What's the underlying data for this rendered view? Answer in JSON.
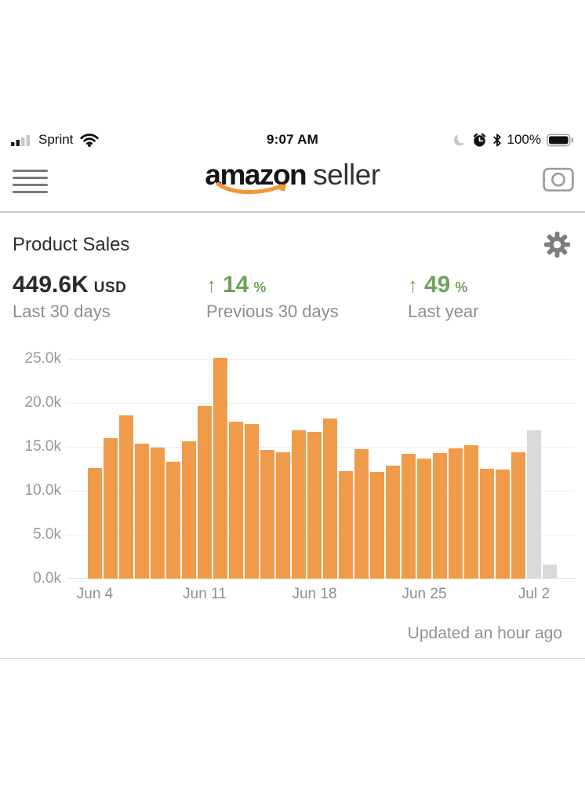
{
  "status_bar": {
    "carrier": "Sprint",
    "time": "9:07 AM",
    "battery_percent": "100%"
  },
  "header": {
    "logo_primary": "amazon",
    "logo_secondary": "seller"
  },
  "product_sales": {
    "title": "Product Sales",
    "total_value": "449.6K",
    "total_unit": "USD",
    "total_caption": "Last 30 days",
    "comparisons": [
      {
        "arrow": "↑",
        "value": "14",
        "unit": "%",
        "caption": "Previous 30 days"
      },
      {
        "arrow": "↑",
        "value": "49",
        "unit": "%",
        "caption": "Last year"
      }
    ],
    "updated_text": "Updated an hour ago"
  },
  "colors": {
    "bar_orange": "#ef9b4a",
    "bar_partial_gray": "#d9d9d9",
    "green": "#6da45c",
    "smile_orange": "#f0973a"
  },
  "chart_data": {
    "type": "bar",
    "title": "Product Sales, last 30 days (USD)",
    "categories": [
      "Jun 4",
      "Jun 5",
      "Jun 6",
      "Jun 7",
      "Jun 8",
      "Jun 9",
      "Jun 10",
      "Jun 11",
      "Jun 12",
      "Jun 13",
      "Jun 14",
      "Jun 15",
      "Jun 16",
      "Jun 17",
      "Jun 18",
      "Jun 19",
      "Jun 20",
      "Jun 21",
      "Jun 22",
      "Jun 23",
      "Jun 24",
      "Jun 25",
      "Jun 26",
      "Jun 27",
      "Jun 28",
      "Jun 29",
      "Jun 30",
      "Jul 1",
      "Jul 2",
      "Jul 3"
    ],
    "values": [
      12600,
      16000,
      18600,
      15400,
      14900,
      13300,
      15600,
      19600,
      25100,
      17900,
      17600,
      14600,
      14400,
      16900,
      16700,
      18200,
      12200,
      14700,
      12100,
      12900,
      14200,
      13700,
      14300,
      14800,
      15200,
      12500,
      12400,
      14400,
      16900,
      1600
    ],
    "partial_indices": [
      28,
      29
    ],
    "x_ticks": [
      {
        "label": "Jun 4",
        "index": 0
      },
      {
        "label": "Jun 11",
        "index": 7
      },
      {
        "label": "Jun 18",
        "index": 14
      },
      {
        "label": "Jun 25",
        "index": 21
      },
      {
        "label": "Jul 2",
        "index": 28
      }
    ],
    "y_ticks": [
      {
        "label": "25.0k",
        "value": 25000
      },
      {
        "label": "20.0k",
        "value": 20000
      },
      {
        "label": "15.0k",
        "value": 15000
      },
      {
        "label": "10.0k",
        "value": 10000
      },
      {
        "label": "5.0k",
        "value": 5000
      },
      {
        "label": "0.0k",
        "value": 0
      }
    ],
    "ylim": [
      0,
      25000
    ],
    "xlabel": "",
    "ylabel": "",
    "grid": true,
    "legend": "none"
  }
}
